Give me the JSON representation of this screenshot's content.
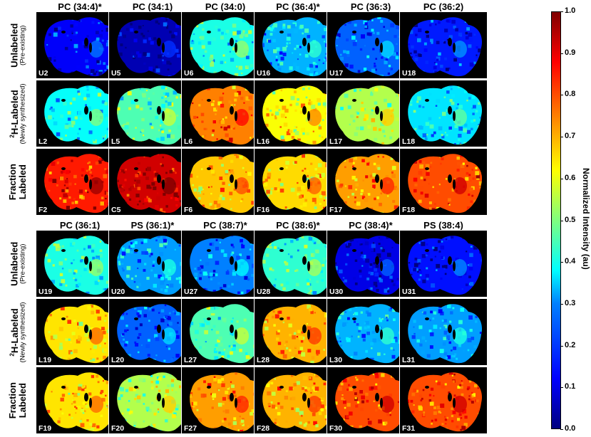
{
  "column_titles_top": [
    "PC (34:4)*",
    "PC (34:1)",
    "PC (34:0)",
    "PC (36:4)*",
    "PC (36:3)",
    "PC (36:2)"
  ],
  "column_titles_bottom": [
    "PC (36:1)",
    "PS (36:1)*",
    "PC (38:7)*",
    "PC (38:6)*",
    "PC (38:4)*",
    "PS (38:4)"
  ],
  "row_labels": {
    "unlabeled_main": "Unlabeled",
    "unlabeled_sub": "(Pre-existing)",
    "labeled_sup": "2",
    "labeled_main": "H-Labeled",
    "labeled_sub": "(Newly synthesized)",
    "fraction_line1": "Fraction",
    "fraction_line2": "Labeled"
  },
  "tile_tags_top": [
    [
      "U2",
      "U5",
      "U6",
      "U16",
      "U17",
      "U18"
    ],
    [
      "L2",
      "L5",
      "L6",
      "L16",
      "L17",
      "L18"
    ],
    [
      "F2",
      "C5",
      "F6",
      "F16",
      "F17",
      "F18"
    ]
  ],
  "tile_tags_bottom": [
    [
      "U19",
      "U20",
      "U27",
      "U28",
      "U30",
      "U31"
    ],
    [
      "L19",
      "L20",
      "L27",
      "L28",
      "L30",
      "L31"
    ],
    [
      "F19",
      "F20",
      "F27",
      "F28",
      "F30",
      "F31"
    ]
  ],
  "tile_levels_top": [
    [
      0.12,
      0.05,
      0.4,
      0.3,
      0.22,
      0.15
    ],
    [
      0.38,
      0.45,
      0.75,
      0.62,
      0.55,
      0.35
    ],
    [
      0.85,
      0.92,
      0.68,
      0.66,
      0.72,
      0.8
    ]
  ],
  "tile_levels_bottom": [
    [
      0.4,
      0.28,
      0.25,
      0.42,
      0.1,
      0.14
    ],
    [
      0.65,
      0.22,
      0.45,
      0.7,
      0.3,
      0.28
    ],
    [
      0.65,
      0.55,
      0.72,
      0.7,
      0.8,
      0.8
    ]
  ],
  "colorbar": {
    "label": "Normalized Intensity (au)",
    "ticks": [
      "1.0",
      "0.9",
      "0.8",
      "0.7",
      "0.6",
      "0.5",
      "0.4",
      "0.3",
      "0.2",
      "0.1",
      "0.0"
    ]
  }
}
